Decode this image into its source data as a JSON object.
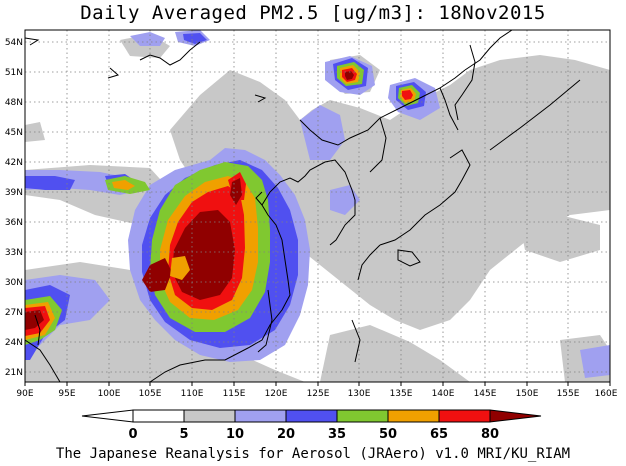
{
  "title": "Daily Averaged PM2.5 [ug/m3]: 18Nov2015",
  "footer": "The Japanese Reanalysis for Aerosol (JRAero) v1.0 MRI/KU_RIAM",
  "map": {
    "lon_range": [
      90,
      160
    ],
    "lat_range": [
      20,
      55
    ],
    "x_ticks": [
      {
        "value": 90,
        "label": "90E"
      },
      {
        "value": 95,
        "label": "95E"
      },
      {
        "value": 100,
        "label": "100E"
      },
      {
        "value": 105,
        "label": "105E"
      },
      {
        "value": 110,
        "label": "110E"
      },
      {
        "value": 115,
        "label": "115E"
      },
      {
        "value": 120,
        "label": "120E"
      },
      {
        "value": 125,
        "label": "125E"
      },
      {
        "value": 130,
        "label": "130E"
      },
      {
        "value": 135,
        "label": "135E"
      },
      {
        "value": 140,
        "label": "140E"
      },
      {
        "value": 145,
        "label": "145E"
      },
      {
        "value": 150,
        "label": "150E"
      },
      {
        "value": 155,
        "label": "155E"
      },
      {
        "value": 160,
        "label": "160E"
      }
    ],
    "y_ticks": [
      {
        "value": 21,
        "label": "21N"
      },
      {
        "value": 24,
        "label": "24N"
      },
      {
        "value": 27,
        "label": "27N"
      },
      {
        "value": 30,
        "label": "30N"
      },
      {
        "value": 33,
        "label": "33N"
      },
      {
        "value": 36,
        "label": "36N"
      },
      {
        "value": 39,
        "label": "39N"
      },
      {
        "value": 42,
        "label": "42N"
      },
      {
        "value": 45,
        "label": "45N"
      },
      {
        "value": 48,
        "label": "48N"
      },
      {
        "value": 51,
        "label": "51N"
      },
      {
        "value": 54,
        "label": "54N"
      }
    ],
    "grid": "dotted"
  },
  "colorbar": {
    "levels": [
      "0",
      "5",
      "10",
      "20",
      "35",
      "50",
      "65",
      "80"
    ],
    "colors": [
      "#ffffff",
      "#c8c8c8",
      "#a0a0f0",
      "#5050f0",
      "#80c830",
      "#f0a000",
      "#f01010",
      "#900000"
    ],
    "under_color": "#ffffff",
    "over_color": "#900000"
  }
}
